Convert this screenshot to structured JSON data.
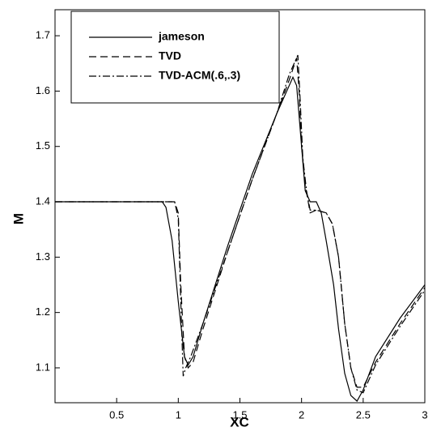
{
  "chart_data": {
    "type": "line",
    "xlabel": "XC",
    "ylabel": "M",
    "xlim": [
      0,
      3
    ],
    "ylim": [
      1.037,
      1.747
    ],
    "xticks": [
      0.5,
      1,
      1.5,
      2,
      2.5,
      3
    ],
    "yticks": [
      1.1,
      1.2,
      1.3,
      1.4,
      1.5,
      1.6,
      1.7
    ],
    "legend": "upper left",
    "series": [
      {
        "name": "jameson",
        "color": "#000000",
        "dash": "solid",
        "x": [
          0,
          0.87,
          0.9,
          0.95,
          1.0,
          1.05,
          1.08,
          1.12,
          1.2,
          1.4,
          1.6,
          1.8,
          1.9,
          1.93,
          1.96,
          2.0,
          2.03,
          2.07,
          2.12,
          2.16,
          2.2,
          2.26,
          2.3,
          2.35,
          2.4,
          2.45,
          2.5,
          2.6,
          2.8,
          3.0
        ],
        "values": [
          1.4,
          1.4,
          1.39,
          1.33,
          1.22,
          1.12,
          1.105,
          1.12,
          1.18,
          1.32,
          1.45,
          1.56,
          1.61,
          1.625,
          1.61,
          1.5,
          1.42,
          1.4,
          1.4,
          1.38,
          1.33,
          1.25,
          1.17,
          1.09,
          1.05,
          1.04,
          1.06,
          1.12,
          1.19,
          1.25
        ]
      },
      {
        "name": "TVD",
        "color": "#000000",
        "dash": "dashed",
        "x": [
          0,
          0.97,
          1.0,
          1.02,
          1.05,
          1.08,
          1.12,
          1.2,
          1.4,
          1.6,
          1.8,
          1.9,
          1.96,
          1.98,
          2.0,
          2.03,
          2.07,
          2.12,
          2.2,
          2.25,
          2.3,
          2.35,
          2.4,
          2.45,
          2.5,
          2.6,
          2.8,
          3.0
        ],
        "values": [
          1.4,
          1.4,
          1.38,
          1.25,
          1.12,
          1.1,
          1.11,
          1.17,
          1.31,
          1.44,
          1.56,
          1.62,
          1.66,
          1.6,
          1.5,
          1.43,
          1.38,
          1.385,
          1.38,
          1.36,
          1.3,
          1.18,
          1.1,
          1.065,
          1.065,
          1.11,
          1.18,
          1.245
        ]
      },
      {
        "name": "TVD-ACM(.6,.3)",
        "color": "#000000",
        "dash": "dashdot",
        "x": [
          0,
          0.97,
          1.0,
          1.02,
          1.04,
          1.06,
          1.1,
          1.2,
          1.4,
          1.6,
          1.8,
          1.9,
          1.97,
          1.99,
          2.01,
          2.04,
          2.07,
          2.12,
          2.2,
          2.25,
          2.3,
          2.35,
          2.4,
          2.45,
          2.5,
          2.6,
          2.8,
          3.0
        ],
        "values": [
          1.4,
          1.4,
          1.37,
          1.22,
          1.085,
          1.1,
          1.12,
          1.18,
          1.31,
          1.44,
          1.56,
          1.63,
          1.665,
          1.58,
          1.48,
          1.42,
          1.385,
          1.385,
          1.38,
          1.36,
          1.3,
          1.18,
          1.1,
          1.06,
          1.055,
          1.105,
          1.175,
          1.24
        ]
      }
    ]
  }
}
